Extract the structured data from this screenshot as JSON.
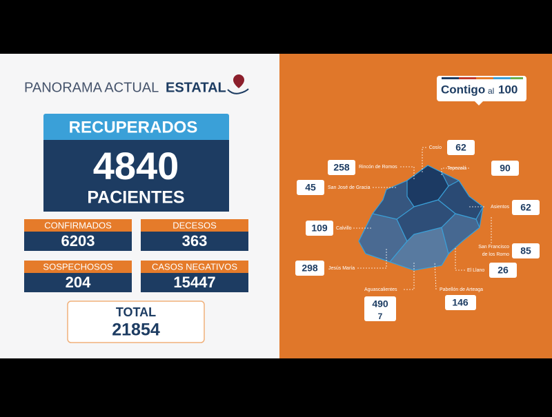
{
  "header": {
    "title": "PANORAMA ACTUAL",
    "title_emphasis": "ESTATAL"
  },
  "recuperados": {
    "label": "RECUPERADOS",
    "value": 4840,
    "unit": "PACIENTES"
  },
  "cards": [
    {
      "label": "CONFIRMADOS",
      "value": 6203
    },
    {
      "label": "DECESOS",
      "value": 363
    },
    {
      "label": "SOSPECHOSOS",
      "value": 204
    },
    {
      "label": "CASOS NEGATIVOS",
      "value": 15447
    }
  ],
  "total": {
    "label": "TOTAL",
    "value": 21854
  },
  "logo": {
    "word": "Contigo",
    "small": "al",
    "number": "100"
  },
  "municipalities": [
    {
      "name": "Cosío",
      "value": 62
    },
    {
      "name": "Rincón de Romos",
      "value": 258
    },
    {
      "name": "Tepezalá",
      "value": 90
    },
    {
      "name": "San José de Gracia",
      "value": 45
    },
    {
      "name": "Asientos",
      "value": 62
    },
    {
      "name": "Calvillo",
      "value": 109
    },
    {
      "name": [
        "San Francisco",
        "de los Romo"
      ],
      "value": 85
    },
    {
      "name": "Jesús María",
      "value": 298
    },
    {
      "name": "El Llano",
      "value": 26
    },
    {
      "name": "Aguascalientes",
      "value": 490,
      "extra": "7"
    },
    {
      "name": "Pabellón de Arteaga",
      "value": 146
    }
  ]
}
